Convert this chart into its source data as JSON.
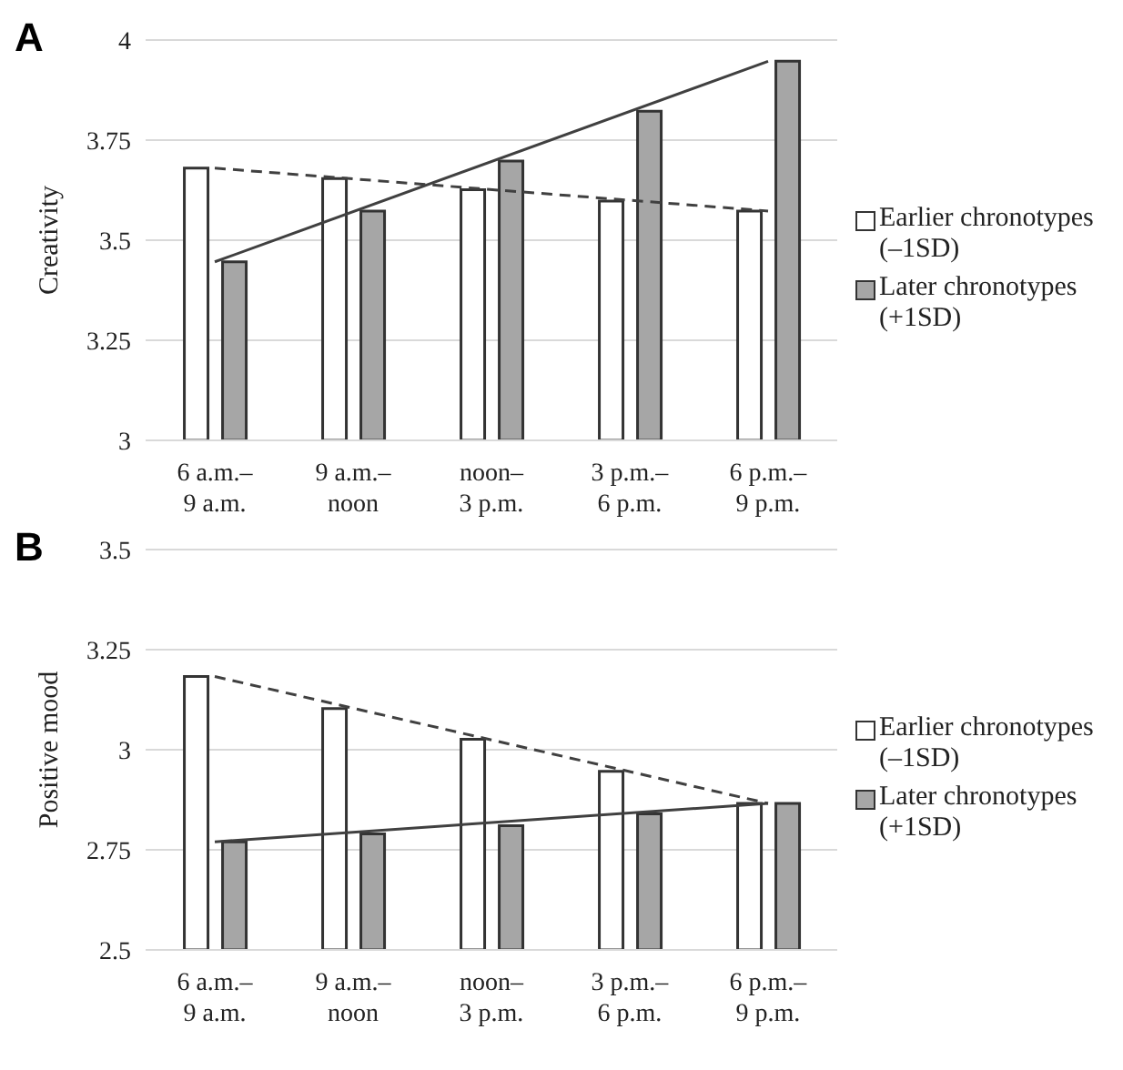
{
  "chart_data": [
    {
      "type": "bar",
      "title": "A",
      "ylabel": "Creativity",
      "categories": [
        "6 a.m.– 9 a.m.",
        "9 a.m.– noon",
        "noon– 3 p.m.",
        "3 p.m.– 6 p.m.",
        "6 p.m.– 9 p.m."
      ],
      "ylim": [
        3,
        4
      ],
      "yticks": [
        3,
        3.25,
        3.5,
        3.75,
        4
      ],
      "grid": "y",
      "legend": "right",
      "series": [
        {
          "name": "Earlier chronotypes (–1SD)",
          "color": "#ffffff",
          "values": [
            3.68,
            3.654,
            3.626,
            3.598,
            3.573
          ]
        },
        {
          "name": "Later chronotypes (+1SD)",
          "color": "#a6a6a6",
          "values": [
            3.446,
            3.573,
            3.698,
            3.822,
            3.947
          ]
        },
        {
          "type": "line",
          "color": "#404040",
          "line_style": "dashed",
          "x": [
            "6 a.m.– 9 a.m.",
            "6 p.m.– 9 p.m."
          ],
          "values": [
            3.68,
            3.573
          ]
        },
        {
          "type": "line",
          "color": "#404040",
          "line_style": "solid",
          "x": [
            "6 a.m.– 9 a.m.",
            "6 p.m.– 9 p.m."
          ],
          "values": [
            3.446,
            3.947
          ]
        }
      ]
    },
    {
      "type": "bar",
      "title": "B",
      "ylabel": "Positive mood",
      "categories": [
        "6 a.m.– 9 a.m.",
        "9 a.m.– noon",
        "noon– 3 p.m.",
        "3 p.m.– 6 p.m.",
        "6 p.m.– 9 p.m."
      ],
      "ylim": [
        2.5,
        3.5
      ],
      "yticks": [
        2.5,
        2.75,
        3,
        3.25,
        3.5
      ],
      "grid": "y",
      "legend": "right",
      "series": [
        {
          "name": "Earlier chronotypes (–1SD)",
          "color": "#ffffff",
          "values": [
            3.183,
            3.103,
            3.026,
            2.946,
            2.866
          ]
        },
        {
          "name": "Later chronotypes (+1SD)",
          "color": "#a6a6a6",
          "values": [
            2.77,
            2.79,
            2.81,
            2.84,
            2.866
          ]
        },
        {
          "type": "line",
          "color": "#404040",
          "line_style": "dashed",
          "x": [
            "6 a.m.– 9 a.m.",
            "6 p.m.– 9 p.m."
          ],
          "values": [
            3.183,
            2.866
          ]
        },
        {
          "type": "line",
          "color": "#404040",
          "line_style": "solid",
          "x": [
            "6 a.m.– 9 a.m.",
            "6 p.m.– 9 p.m."
          ],
          "values": [
            2.77,
            2.866
          ]
        }
      ]
    }
  ]
}
